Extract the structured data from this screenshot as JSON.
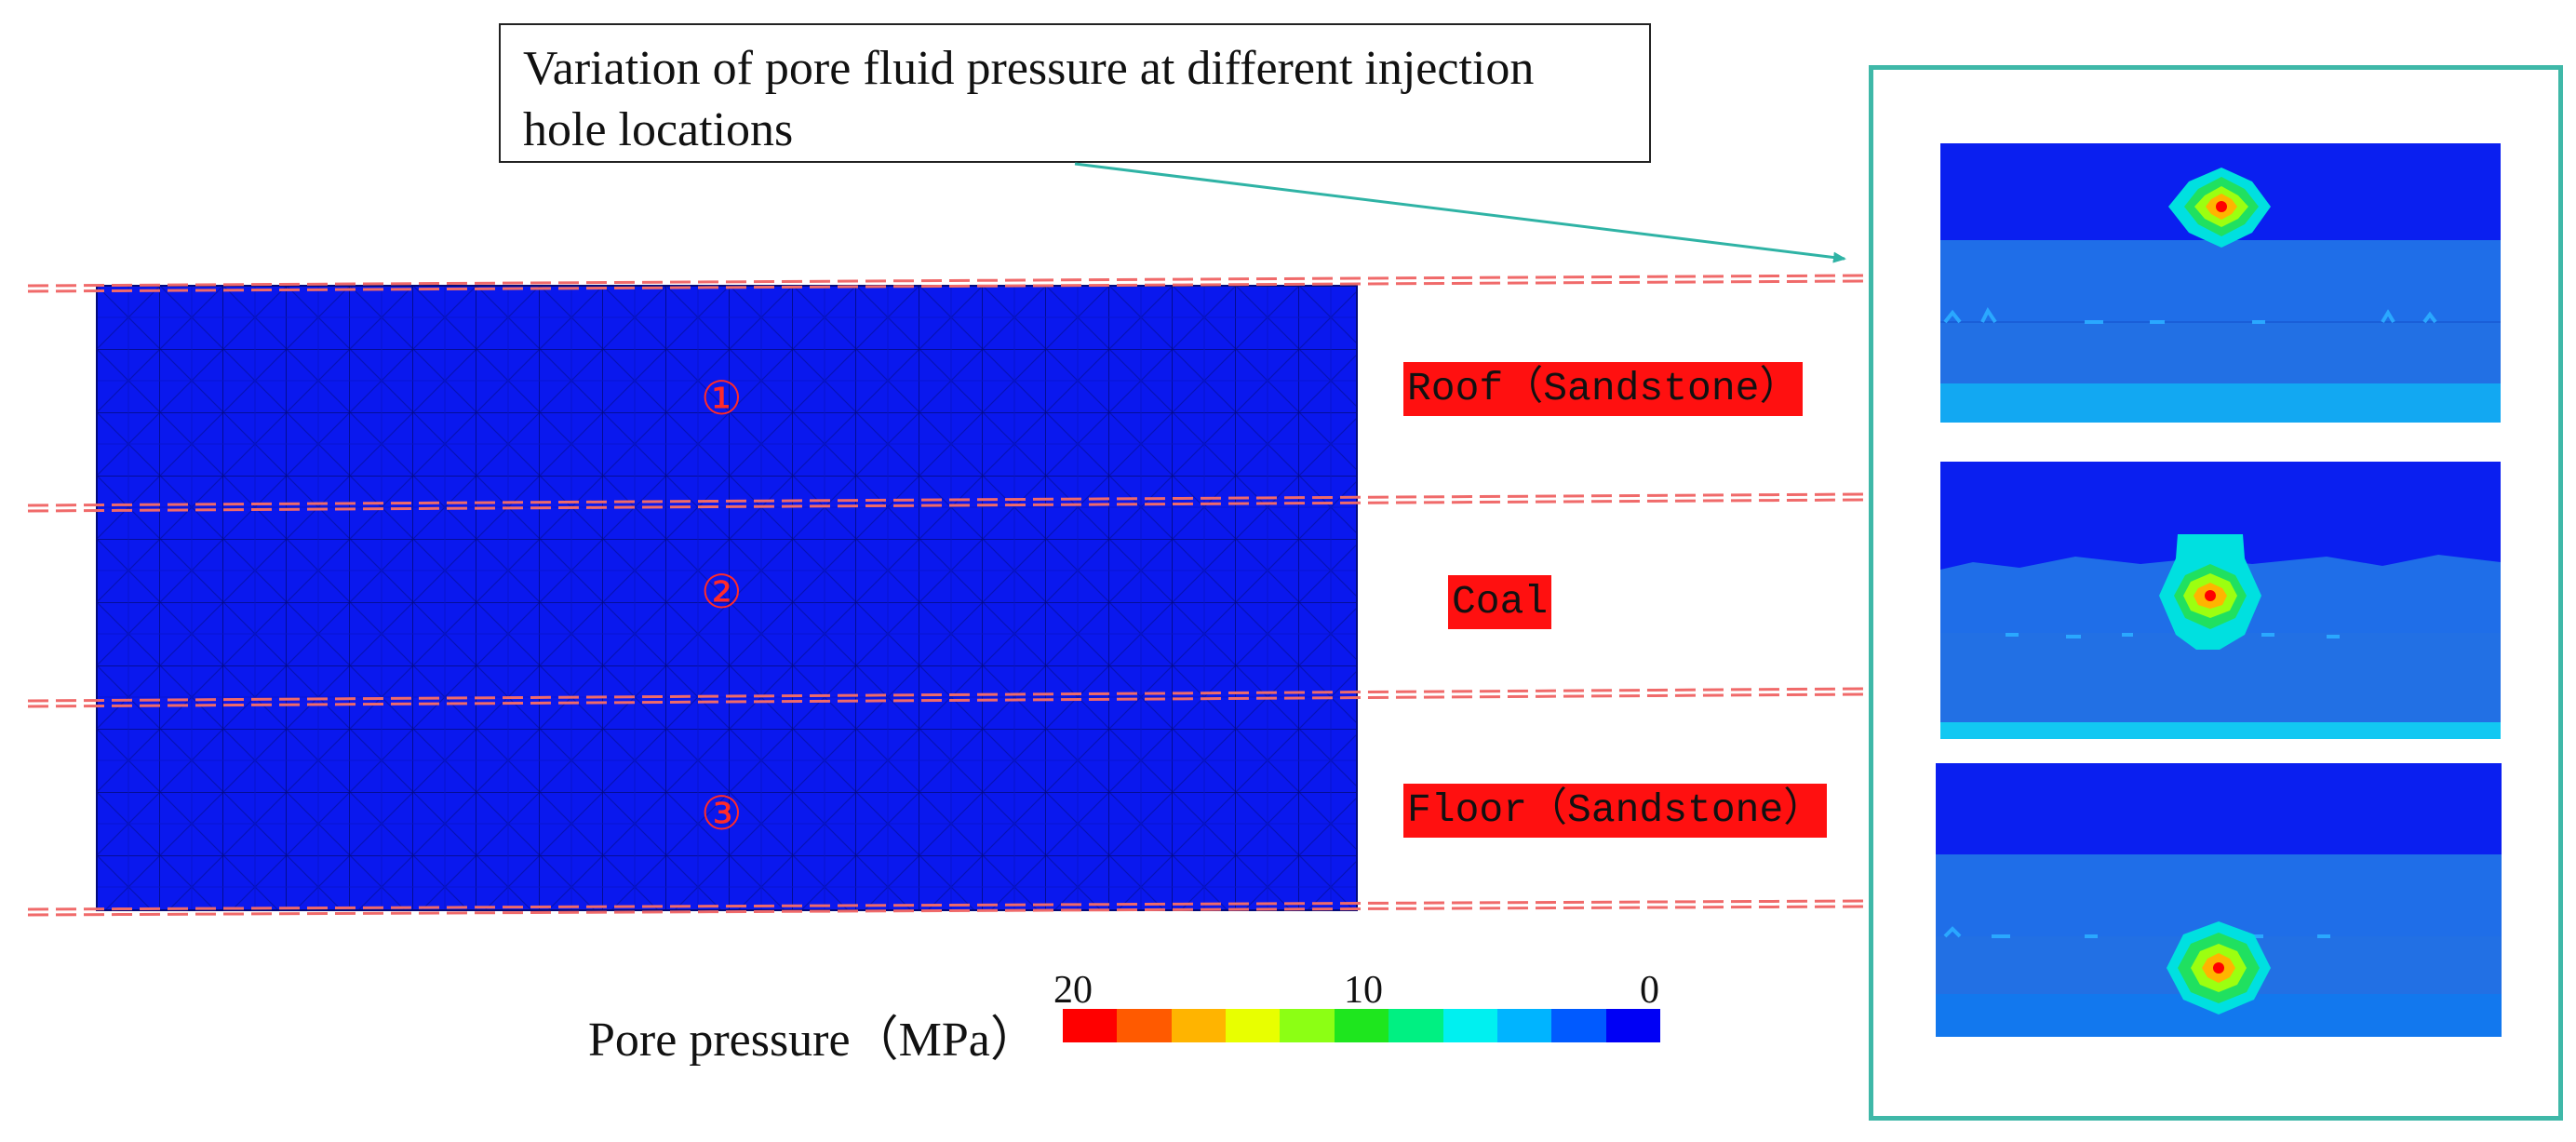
{
  "callout": {
    "title": "Variation of pore fluid pressure at different injection hole locations"
  },
  "strata": [
    {
      "number": "①",
      "name": "Roof（Sandstone）"
    },
    {
      "number": "②",
      "name": "Coal"
    },
    {
      "number": "③",
      "name": "Floor（Sandstone）"
    }
  ],
  "legend": {
    "title": "Pore pressure（MPa）",
    "max_label": "20",
    "mid_label": "10",
    "min_label": "0",
    "colors": [
      "#ff0000",
      "#ff5a00",
      "#ffb400",
      "#e8ff00",
      "#8cff14",
      "#1ee61e",
      "#00f082",
      "#00f0f0",
      "#00b4ff",
      "#005aff",
      "#0000f5"
    ]
  },
  "colors": {
    "model_fill": "#0a18ee",
    "boundary_line": "#f06a6a",
    "label_bg": "#ff1010",
    "panel_border": "#3fb8a8",
    "pointer": "#2fb3a5"
  }
}
